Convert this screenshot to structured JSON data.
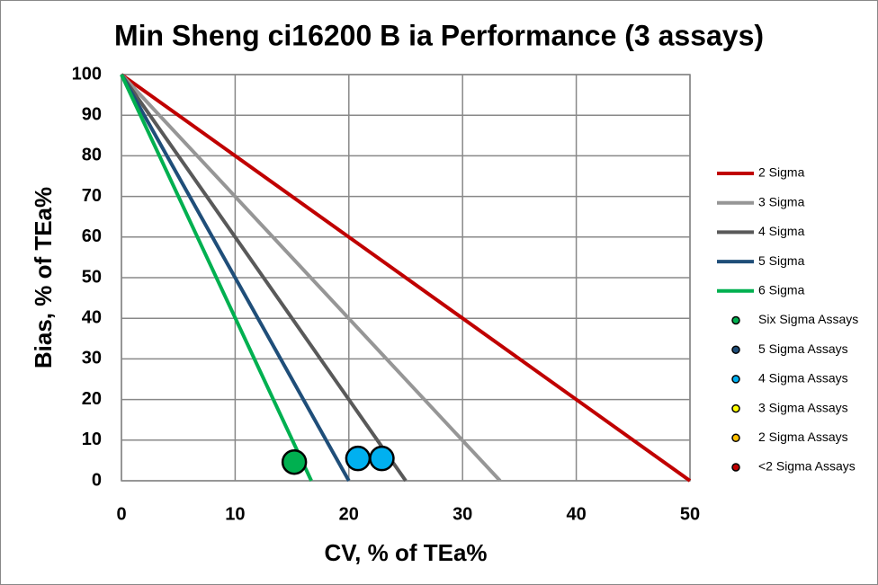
{
  "chart_data": {
    "type": "scatter",
    "title": "Min Sheng ci16200 B ia Performance (3 assays)",
    "x_label": "CV, % of TEa%",
    "y_label": "Bias, % of TEa%",
    "xlim": [
      0,
      50
    ],
    "xticks": [
      0,
      10,
      20,
      30,
      40,
      50
    ],
    "ylim": [
      0,
      100
    ],
    "yticks": [
      0,
      10,
      20,
      30,
      40,
      50,
      60,
      70,
      80,
      90,
      100
    ],
    "grid": true,
    "legend": "right",
    "series": [
      {
        "name": "2 Sigma",
        "color": "#c00000",
        "mode": "line",
        "x": [
          0,
          50
        ],
        "values": [
          100,
          0
        ]
      },
      {
        "name": "3 Sigma",
        "color": "#969696",
        "mode": "line",
        "x": [
          0,
          33.3
        ],
        "values": [
          100,
          0
        ]
      },
      {
        "name": "4 Sigma",
        "color": "#595959",
        "mode": "line",
        "x": [
          0,
          25
        ],
        "values": [
          100,
          0
        ]
      },
      {
        "name": "5 Sigma",
        "color": "#1f4e79",
        "mode": "line",
        "x": [
          0,
          20
        ],
        "values": [
          100,
          0
        ]
      },
      {
        "name": "6 Sigma",
        "color": "#00b050",
        "mode": "line",
        "x": [
          0,
          16.7
        ],
        "values": [
          100,
          0
        ]
      },
      {
        "name": "Six Sigma Assays",
        "color": "#00b050",
        "mode": "marker",
        "x": [
          15.2
        ],
        "values": [
          4.6
        ]
      },
      {
        "name": "5 Sigma Assays",
        "color": "#1f4e79",
        "mode": "marker",
        "x": [],
        "values": []
      },
      {
        "name": "4 Sigma Assays",
        "color": "#00b0f0",
        "mode": "marker",
        "x": [
          20.8,
          22.9
        ],
        "values": [
          5.5,
          5.5
        ]
      },
      {
        "name": "3 Sigma Assays",
        "color": "#ffff00",
        "mode": "marker",
        "x": [],
        "values": []
      },
      {
        "name": "2 Sigma Assays",
        "color": "#ffc000",
        "mode": "marker",
        "x": [],
        "values": []
      },
      {
        "name": "<2 Sigma Assays",
        "color": "#c00000",
        "mode": "marker",
        "x": [],
        "values": []
      }
    ]
  }
}
